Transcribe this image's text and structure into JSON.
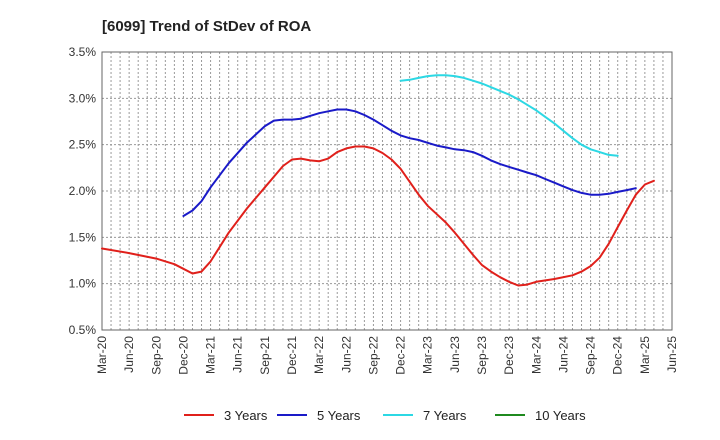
{
  "chart_data": {
    "type": "line",
    "title": "[6099]  Trend of StDev of ROA",
    "xlabel": "",
    "ylabel": "",
    "y_tick_labels": [
      "0.5%",
      "1.0%",
      "1.5%",
      "2.0%",
      "2.5%",
      "3.0%",
      "3.5%"
    ],
    "ylim": [
      0.5,
      3.5
    ],
    "x_tick_labels": [
      "Mar-20",
      "Jun-20",
      "Sep-20",
      "Dec-20",
      "Mar-21",
      "Jun-21",
      "Sep-21",
      "Dec-21",
      "Mar-22",
      "Jun-22",
      "Sep-22",
      "Dec-22",
      "Mar-23",
      "Jun-23",
      "Sep-23",
      "Dec-23",
      "Mar-24",
      "Jun-24",
      "Sep-24",
      "Dec-24",
      "Mar-25",
      "Jun-25"
    ],
    "x_unit": "month index from first x tick label (Mar-20)",
    "xlim": [
      0,
      63
    ],
    "grid": true,
    "legend_position": "bottom",
    "series": [
      {
        "name": "3 Years",
        "color": "#e0201b",
        "points": [
          [
            0,
            1.38
          ],
          [
            3,
            1.33
          ],
          [
            6,
            1.27
          ],
          [
            8,
            1.21
          ],
          [
            9,
            1.16
          ],
          [
            10,
            1.11
          ],
          [
            11,
            1.13
          ],
          [
            12,
            1.24
          ],
          [
            14,
            1.55
          ],
          [
            16,
            1.81
          ],
          [
            18,
            2.04
          ],
          [
            20,
            2.27
          ],
          [
            21,
            2.34
          ],
          [
            22,
            2.35
          ],
          [
            23,
            2.33
          ],
          [
            24,
            2.32
          ],
          [
            25,
            2.35
          ],
          [
            26,
            2.42
          ],
          [
            27,
            2.46
          ],
          [
            28,
            2.48
          ],
          [
            29,
            2.48
          ],
          [
            30,
            2.46
          ],
          [
            31,
            2.41
          ],
          [
            32,
            2.34
          ],
          [
            33,
            2.24
          ],
          [
            34,
            2.1
          ],
          [
            35,
            1.96
          ],
          [
            36,
            1.84
          ],
          [
            37,
            1.75
          ],
          [
            38,
            1.66
          ],
          [
            39,
            1.55
          ],
          [
            40,
            1.43
          ],
          [
            41,
            1.31
          ],
          [
            42,
            1.2
          ],
          [
            43,
            1.13
          ],
          [
            44,
            1.07
          ],
          [
            45,
            1.02
          ],
          [
            46,
            0.98
          ],
          [
            47,
            0.99
          ],
          [
            48,
            1.02
          ],
          [
            50,
            1.05
          ],
          [
            52,
            1.09
          ],
          [
            53,
            1.13
          ],
          [
            54,
            1.19
          ],
          [
            55,
            1.28
          ],
          [
            56,
            1.43
          ],
          [
            57,
            1.61
          ],
          [
            58,
            1.79
          ],
          [
            59,
            1.96
          ],
          [
            60,
            2.07
          ],
          [
            61,
            2.11
          ]
        ]
      },
      {
        "name": "5 Years",
        "color": "#1a1ac8",
        "points": [
          [
            9,
            1.73
          ],
          [
            10,
            1.79
          ],
          [
            11,
            1.89
          ],
          [
            12,
            2.04
          ],
          [
            14,
            2.3
          ],
          [
            16,
            2.52
          ],
          [
            18,
            2.7
          ],
          [
            19,
            2.76
          ],
          [
            20,
            2.77
          ],
          [
            21,
            2.77
          ],
          [
            22,
            2.78
          ],
          [
            23,
            2.81
          ],
          [
            24,
            2.84
          ],
          [
            25,
            2.86
          ],
          [
            26,
            2.88
          ],
          [
            27,
            2.88
          ],
          [
            28,
            2.86
          ],
          [
            29,
            2.82
          ],
          [
            30,
            2.77
          ],
          [
            31,
            2.71
          ],
          [
            32,
            2.65
          ],
          [
            33,
            2.6
          ],
          [
            34,
            2.57
          ],
          [
            35,
            2.55
          ],
          [
            36,
            2.52
          ],
          [
            37,
            2.49
          ],
          [
            38,
            2.47
          ],
          [
            39,
            2.45
          ],
          [
            40,
            2.44
          ],
          [
            41,
            2.42
          ],
          [
            42,
            2.38
          ],
          [
            43,
            2.33
          ],
          [
            44,
            2.29
          ],
          [
            45,
            2.26
          ],
          [
            46,
            2.23
          ],
          [
            47,
            2.2
          ],
          [
            48,
            2.17
          ],
          [
            49,
            2.13
          ],
          [
            50,
            2.09
          ],
          [
            51,
            2.05
          ],
          [
            52,
            2.01
          ],
          [
            53,
            1.98
          ],
          [
            54,
            1.96
          ],
          [
            55,
            1.96
          ],
          [
            56,
            1.97
          ],
          [
            57,
            1.99
          ],
          [
            58,
            2.01
          ],
          [
            59,
            2.03
          ]
        ]
      },
      {
        "name": "7 Years",
        "color": "#2cd8e4",
        "points": [
          [
            33,
            3.19
          ],
          [
            34,
            3.2
          ],
          [
            35,
            3.22
          ],
          [
            36,
            3.24
          ],
          [
            37,
            3.25
          ],
          [
            38,
            3.25
          ],
          [
            39,
            3.24
          ],
          [
            40,
            3.22
          ],
          [
            41,
            3.19
          ],
          [
            42,
            3.16
          ],
          [
            43,
            3.12
          ],
          [
            44,
            3.08
          ],
          [
            45,
            3.04
          ],
          [
            46,
            2.99
          ],
          [
            47,
            2.93
          ],
          [
            48,
            2.87
          ],
          [
            49,
            2.8
          ],
          [
            50,
            2.73
          ],
          [
            51,
            2.65
          ],
          [
            52,
            2.57
          ],
          [
            53,
            2.5
          ],
          [
            54,
            2.45
          ],
          [
            55,
            2.42
          ],
          [
            56,
            2.39
          ],
          [
            57,
            2.38
          ]
        ]
      },
      {
        "name": "10 Years",
        "color": "#1f8a1f",
        "points": []
      }
    ]
  }
}
